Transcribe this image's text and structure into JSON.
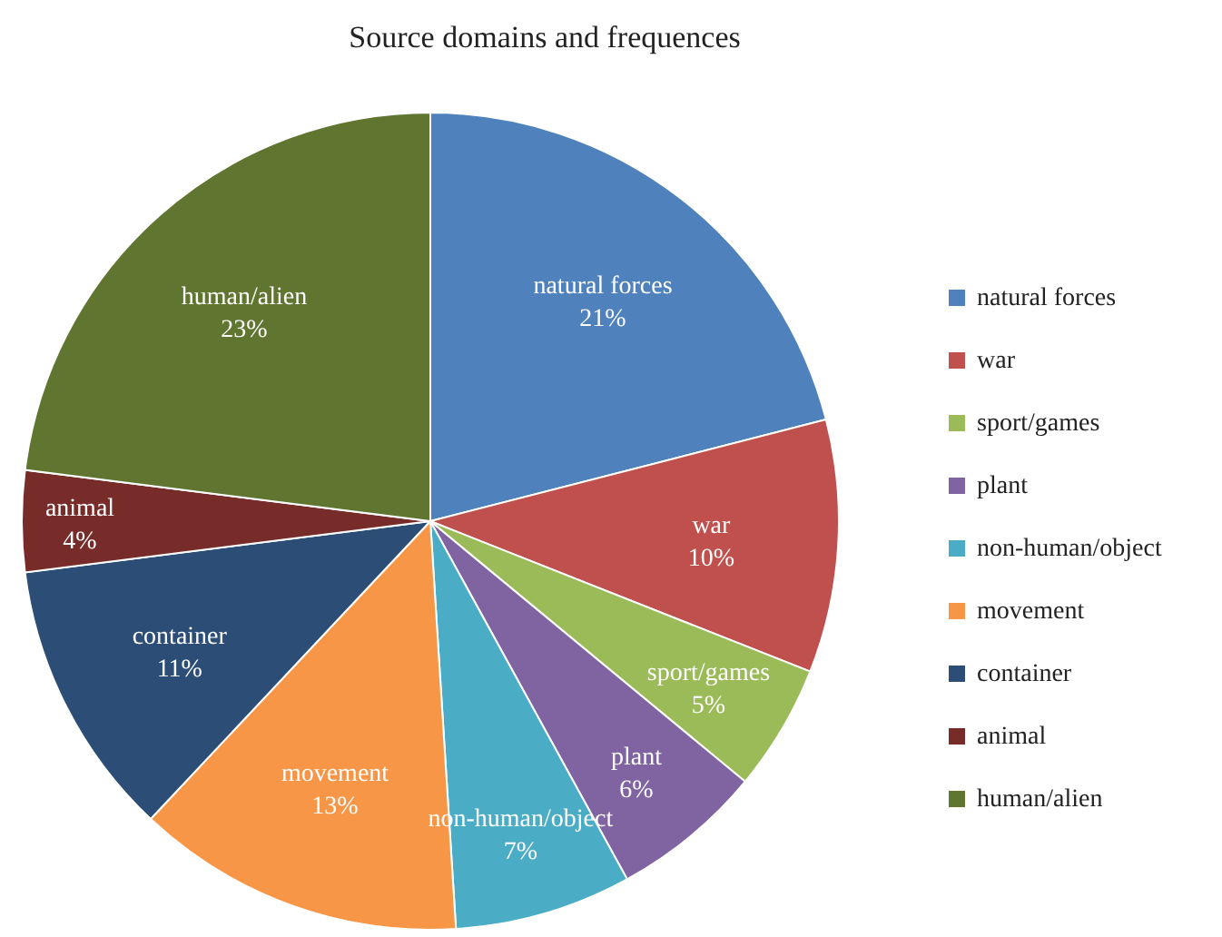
{
  "chart_data": {
    "type": "pie",
    "title": "Source domains and frequences",
    "categories": [
      "natural forces",
      "war",
      "sport/games",
      "plant",
      "non-human/object",
      "movement",
      "container",
      "animal",
      "human/alien"
    ],
    "values": [
      21,
      10,
      5,
      6,
      7,
      13,
      11,
      4,
      23
    ],
    "value_labels": [
      "21%",
      "10%",
      "5%",
      "6%",
      "7%",
      "13%",
      "11%",
      "4%",
      "23%"
    ],
    "colors": [
      "#4f81bd",
      "#c0504d",
      "#9bbb59",
      "#8064a2",
      "#4bacc6",
      "#f79646",
      "#2c4d75",
      "#772c2a",
      "#5f7530"
    ],
    "legend": "right"
  }
}
